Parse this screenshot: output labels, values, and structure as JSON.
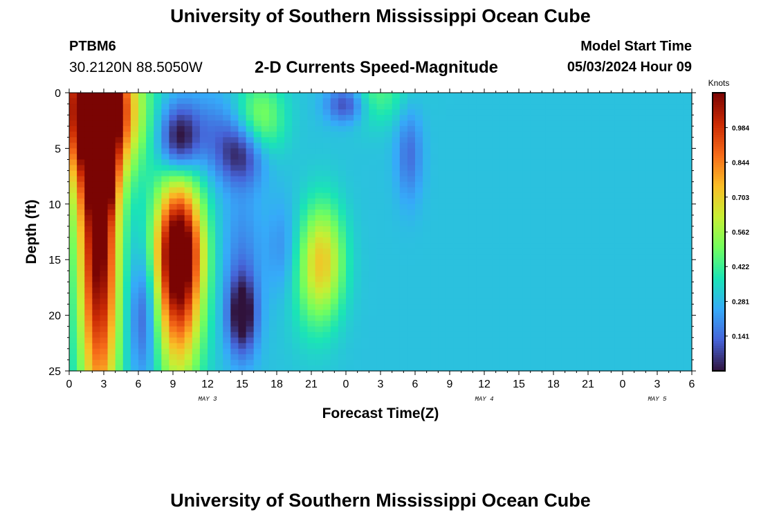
{
  "header": {
    "title": "University of Southern Mississippi Ocean Cube",
    "station": "PTBM6",
    "coords": "30.2120N  88.5050W",
    "subtitle": "2-D Currents Speed-Magnitude",
    "model_start_label": "Model Start Time",
    "model_start_value": "05/03/2024 Hour 09"
  },
  "footer": {
    "title": "University of Southern Mississippi Ocean Cube"
  },
  "chart_data": {
    "type": "heatmap",
    "xlabel": "Forecast Time(Z)",
    "ylabel": "Depth (ft)",
    "x_range": [
      0,
      54
    ],
    "y_range": [
      0,
      25
    ],
    "y_ticks": [
      0,
      5,
      10,
      15,
      20,
      25
    ],
    "x_ticks": [
      {
        "x": 0,
        "label": "0"
      },
      {
        "x": 3,
        "label": "3"
      },
      {
        "x": 6,
        "label": "6"
      },
      {
        "x": 9,
        "label": "9"
      },
      {
        "x": 12,
        "label": "12"
      },
      {
        "x": 15,
        "label": "15"
      },
      {
        "x": 18,
        "label": "18"
      },
      {
        "x": 21,
        "label": "21"
      },
      {
        "x": 24,
        "label": "0"
      },
      {
        "x": 27,
        "label": "3"
      },
      {
        "x": 30,
        "label": "6"
      },
      {
        "x": 33,
        "label": "9"
      },
      {
        "x": 36,
        "label": "12"
      },
      {
        "x": 39,
        "label": "15"
      },
      {
        "x": 42,
        "label": "18"
      },
      {
        "x": 45,
        "label": "21"
      },
      {
        "x": 48,
        "label": "0"
      },
      {
        "x": 51,
        "label": "3"
      },
      {
        "x": 54,
        "label": "6"
      }
    ],
    "date_labels": [
      {
        "x": 12,
        "label": "MAY 3"
      },
      {
        "x": 36,
        "label": "MAY 4"
      },
      {
        "x": 51,
        "label": "MAY 5"
      }
    ],
    "colorbar": {
      "unit": "Knots",
      "min": 0,
      "max": 1.125,
      "tick_values": [
        0.141,
        0.281,
        0.422,
        0.562,
        0.703,
        0.844,
        0.984
      ],
      "tick_labels": [
        "0.141",
        "0.281",
        "0.422",
        "0.562",
        "0.703",
        "0.844",
        "0.984"
      ]
    },
    "colormap": [
      "#30123b",
      "#4662d7",
      "#36aaf9",
      "#1ae4b6",
      "#72fe5e",
      "#c7ef34",
      "#fabd26",
      "#f66b19",
      "#ca2a04",
      "#7a0403"
    ],
    "features": [
      {
        "t": 2.6,
        "d": 13,
        "st": 1.2,
        "sd": 12,
        "a": 0.85
      },
      {
        "t": 1.0,
        "d": 0,
        "st": 1.6,
        "sd": 8,
        "a": 0.3
      },
      {
        "t": 9.5,
        "d": 4.5,
        "st": 1.2,
        "sd": 2.4,
        "a": -0.38
      },
      {
        "t": 15,
        "d": 5.5,
        "st": 1.5,
        "sd": 2.0,
        "a": -0.26
      },
      {
        "t": 12,
        "d": 3.5,
        "st": 2.5,
        "sd": 2.5,
        "a": -0.12
      },
      {
        "t": 9.5,
        "d": 14,
        "st": 1.5,
        "sd": 3,
        "a": 0.28
      },
      {
        "t": 6.5,
        "d": 20,
        "st": 0.9,
        "sd": 4,
        "a": -0.2
      },
      {
        "t": 18.5,
        "d": 14,
        "st": 1.0,
        "sd": 3,
        "a": -0.1
      },
      {
        "t": 21,
        "d": 17,
        "st": 1.5,
        "sd": 4,
        "a": 0.1
      },
      {
        "t": 3,
        "d": 1.5,
        "st": 2.2,
        "sd": 4.0,
        "a": 0.8
      },
      {
        "t": 3,
        "d": 8.5,
        "st": 0.7,
        "sd": 1.8,
        "a": 0.25
      },
      {
        "t": 9.5,
        "d": 16,
        "st": 1.4,
        "sd": 6.5,
        "a": 0.8
      },
      {
        "t": 15,
        "d": 20,
        "st": 0.9,
        "sd": 2.6,
        "a": -0.35
      },
      {
        "t": 15,
        "d": 14,
        "st": 1.2,
        "sd": 4,
        "a": -0.1
      },
      {
        "t": 16.5,
        "d": 2.5,
        "st": 1.5,
        "sd": 2.5,
        "a": 0.25
      },
      {
        "t": 22,
        "d": 15,
        "st": 1.3,
        "sd": 3.5,
        "a": 0.35
      },
      {
        "t": 24,
        "d": 1,
        "st": 1.2,
        "sd": 1.2,
        "a": -0.25
      },
      {
        "t": 29.5,
        "d": 5.5,
        "st": 0.8,
        "sd": 3,
        "a": -0.15
      },
      {
        "t": 26.5,
        "d": 0,
        "st": 2,
        "sd": 2,
        "a": 0.15
      }
    ]
  }
}
